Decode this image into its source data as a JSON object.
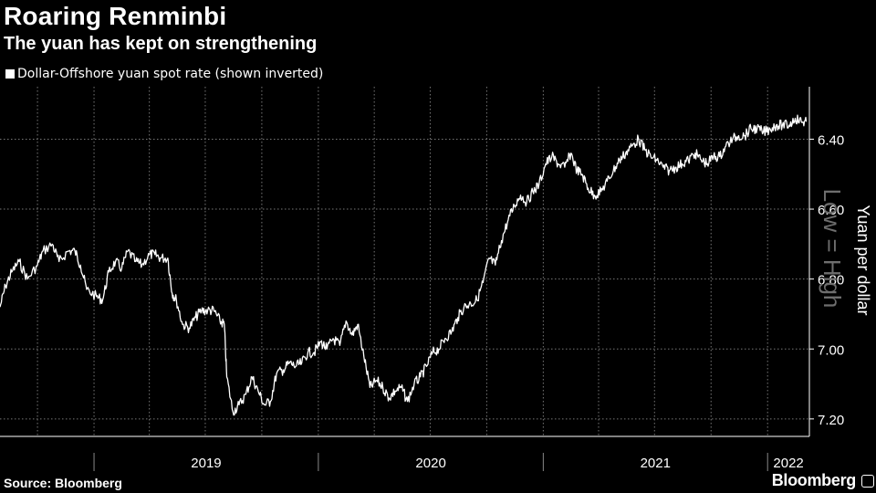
{
  "header": {
    "title": "Roaring Renminbi",
    "subtitle": "The yuan has kept on strengthening"
  },
  "footer": {
    "source": "Source: Bloomberg",
    "brand": "Bloomberg"
  },
  "colors": {
    "background": "#000000",
    "line": "#ffffff",
    "grid": "#777777",
    "watermark": "#6e6e6e"
  },
  "chart_data": {
    "type": "line",
    "legend": "Dollar-Offshore yuan spot rate (shown inverted)",
    "legend_position": "top-left",
    "ylabel": "Yuan per dollar",
    "watermark": "Low = High",
    "y_inverted": true,
    "ylim": [
      6.25,
      7.25
    ],
    "yticks": [
      6.4,
      6.6,
      6.8,
      7.0,
      7.2
    ],
    "ytick_labels": [
      "6.40",
      "6.60",
      "6.80",
      "7.00",
      "7.20"
    ],
    "xlim": [
      "2018-08-01",
      "2022-03-10"
    ],
    "x_year_labels": [
      "2019",
      "2020",
      "2021",
      "2022"
    ],
    "grid": true,
    "series": [
      {
        "x": [
          "2018-08-01",
          "2018-08-10",
          "2018-08-20",
          "2018-09-01",
          "2018-09-15",
          "2018-10-01",
          "2018-10-10",
          "2018-10-25",
          "2018-11-05",
          "2018-11-20",
          "2018-12-01",
          "2018-12-10",
          "2018-12-20",
          "2019-01-05",
          "2019-01-15",
          "2019-01-25",
          "2019-02-05",
          "2019-02-15",
          "2019-02-25",
          "2019-03-10",
          "2019-03-20",
          "2019-04-01",
          "2019-04-10",
          "2019-04-20",
          "2019-05-01",
          "2019-05-08",
          "2019-05-15",
          "2019-05-25",
          "2019-06-05",
          "2019-06-15",
          "2019-06-25",
          "2019-07-05",
          "2019-07-15",
          "2019-07-25",
          "2019-08-01",
          "2019-08-05",
          "2019-08-15",
          "2019-08-25",
          "2019-09-05",
          "2019-09-15",
          "2019-09-25",
          "2019-10-05",
          "2019-10-15",
          "2019-10-25",
          "2019-11-05",
          "2019-11-15",
          "2019-11-25",
          "2019-12-05",
          "2019-12-15",
          "2019-12-25",
          "2020-01-05",
          "2020-01-15",
          "2020-01-25",
          "2020-02-05",
          "2020-02-15",
          "2020-02-25",
          "2020-03-05",
          "2020-03-15",
          "2020-03-25",
          "2020-04-05",
          "2020-04-15",
          "2020-04-25",
          "2020-05-05",
          "2020-05-15",
          "2020-05-25",
          "2020-06-05",
          "2020-06-15",
          "2020-06-25",
          "2020-07-05",
          "2020-07-15",
          "2020-07-25",
          "2020-08-05",
          "2020-08-15",
          "2020-08-25",
          "2020-09-05",
          "2020-09-15",
          "2020-09-25",
          "2020-10-05",
          "2020-10-15",
          "2020-10-25",
          "2020-11-05",
          "2020-11-15",
          "2020-11-25",
          "2020-12-05",
          "2020-12-15",
          "2020-12-25",
          "2021-01-05",
          "2021-01-15",
          "2021-01-25",
          "2021-02-05",
          "2021-02-15",
          "2021-02-25",
          "2021-03-05",
          "2021-03-15",
          "2021-03-25",
          "2021-04-05",
          "2021-04-15",
          "2021-04-25",
          "2021-05-05",
          "2021-05-15",
          "2021-05-25",
          "2021-06-05",
          "2021-06-15",
          "2021-06-25",
          "2021-07-05",
          "2021-07-15",
          "2021-07-25",
          "2021-08-05",
          "2021-08-15",
          "2021-08-25",
          "2021-09-05",
          "2021-09-15",
          "2021-09-25",
          "2021-10-05",
          "2021-10-15",
          "2021-10-25",
          "2021-11-05",
          "2021-11-15",
          "2021-11-25",
          "2021-12-05",
          "2021-12-15",
          "2021-12-25",
          "2022-01-05",
          "2022-01-15",
          "2022-01-25",
          "2022-02-05",
          "2022-02-15",
          "2022-02-25",
          "2022-03-05"
        ],
        "values": [
          6.88,
          6.82,
          6.78,
          6.75,
          6.8,
          6.76,
          6.72,
          6.7,
          6.75,
          6.72,
          6.72,
          6.76,
          6.83,
          6.85,
          6.86,
          6.78,
          6.75,
          6.77,
          6.72,
          6.75,
          6.76,
          6.73,
          6.73,
          6.74,
          6.74,
          6.84,
          6.86,
          6.93,
          6.94,
          6.91,
          6.89,
          6.89,
          6.89,
          6.92,
          6.93,
          7.08,
          7.18,
          7.16,
          7.13,
          7.08,
          7.12,
          7.16,
          7.15,
          7.07,
          7.06,
          7.04,
          7.05,
          7.04,
          7.01,
          7.01,
          6.98,
          7.0,
          6.97,
          6.99,
          6.92,
          6.96,
          6.93,
          7.02,
          7.11,
          7.09,
          7.11,
          7.14,
          7.12,
          7.11,
          7.15,
          7.1,
          7.08,
          7.05,
          7.01,
          7.0,
          6.97,
          6.95,
          6.91,
          6.88,
          6.87,
          6.86,
          6.81,
          6.74,
          6.76,
          6.69,
          6.63,
          6.59,
          6.56,
          6.58,
          6.55,
          6.53,
          6.47,
          6.45,
          6.47,
          6.48,
          6.44,
          6.49,
          6.5,
          6.54,
          6.56,
          6.55,
          6.52,
          6.49,
          6.46,
          6.44,
          6.42,
          6.4,
          6.43,
          6.45,
          6.46,
          6.48,
          6.49,
          6.48,
          6.47,
          6.46,
          6.44,
          6.46,
          6.47,
          6.45,
          6.45,
          6.42,
          6.4,
          6.39,
          6.39,
          6.37,
          6.37,
          6.38,
          6.37,
          6.36,
          6.36,
          6.36,
          6.34,
          6.35,
          6.35
        ]
      }
    ]
  }
}
